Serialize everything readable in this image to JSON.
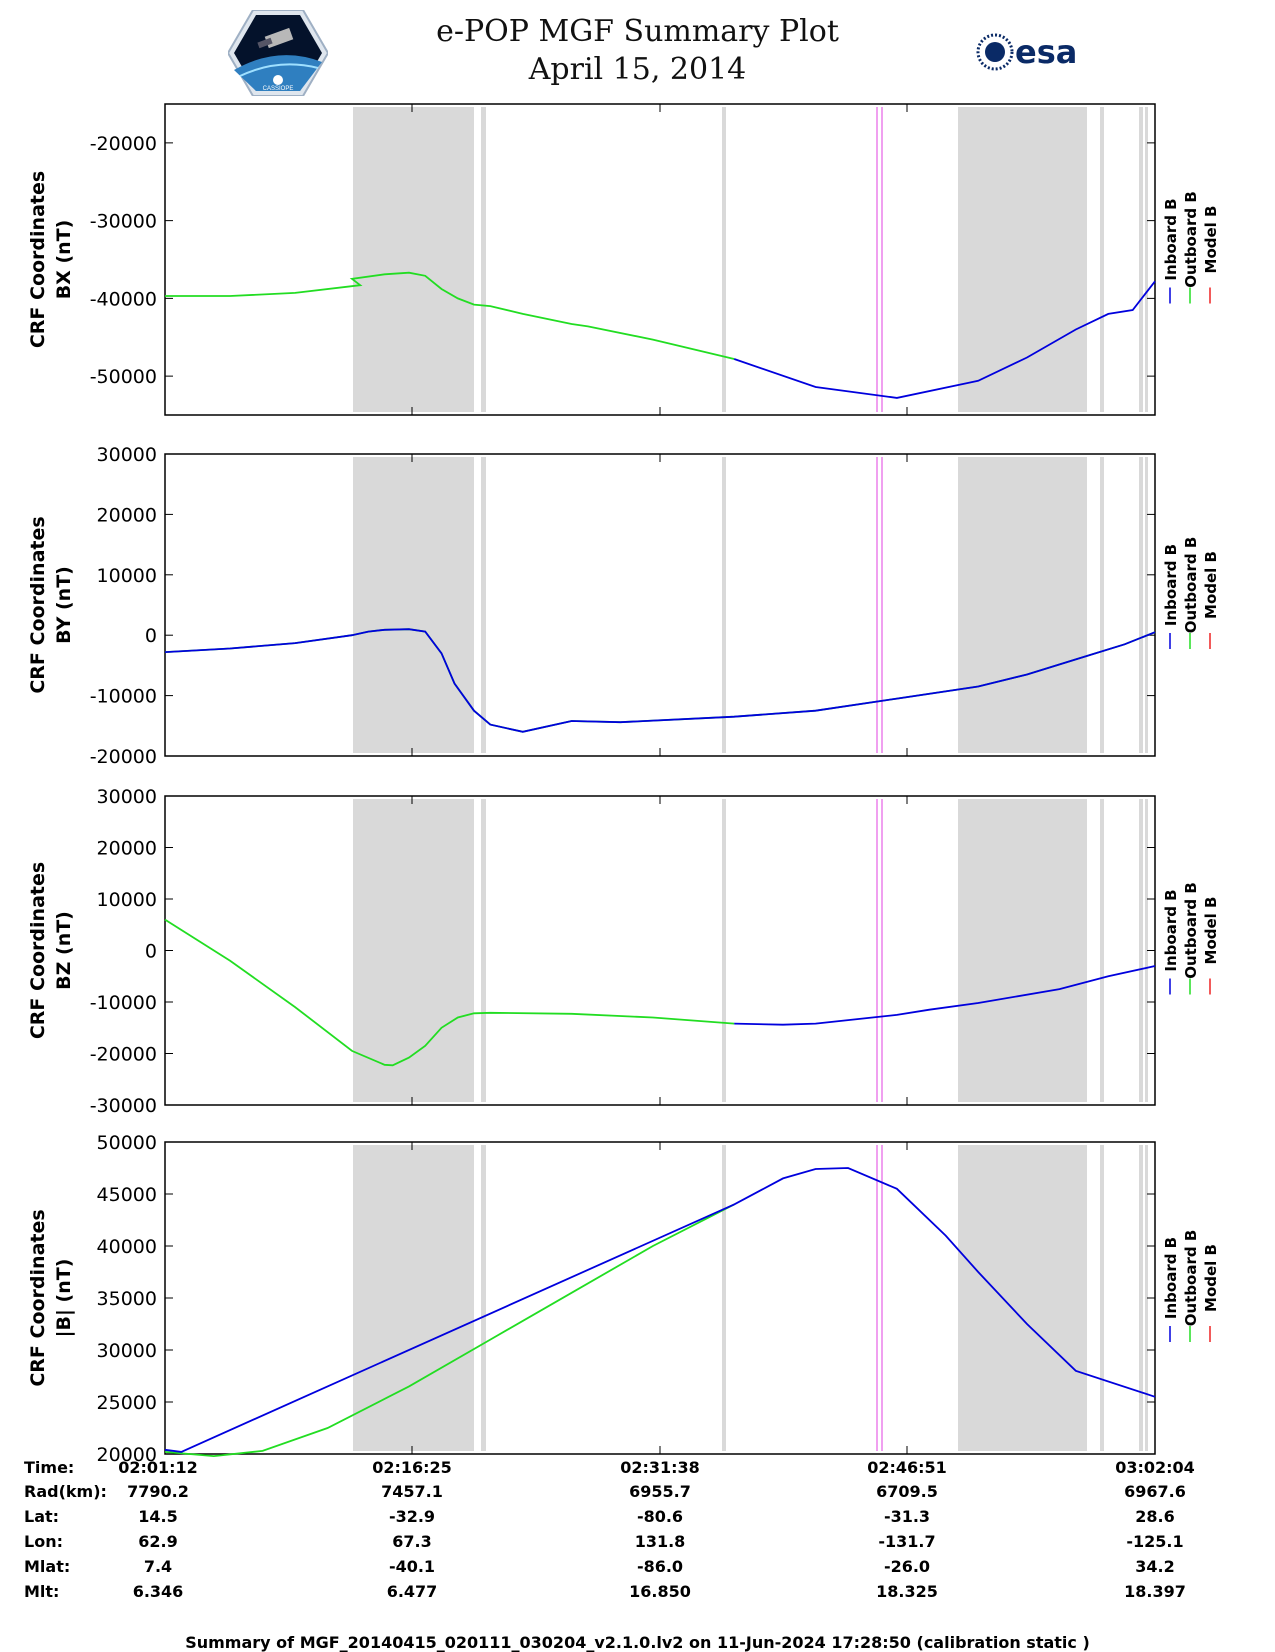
{
  "header": {
    "title_line1": "e-POP MGF Summary Plot",
    "title_line2": "April 15, 2014",
    "left_logo_caption": "CASSIOPE",
    "right_logo_text": "esa"
  },
  "colors": {
    "inboard": "#0000dd",
    "outboard": "#22dd22",
    "model": "#ee2222",
    "shade": "#d9d9d9",
    "magenta": "#f0a0f0"
  },
  "legend_labels": [
    "Inboard B",
    "Outboard B",
    "Model B"
  ],
  "footer": "Summary of MGF_20140415_020111_030204_v2.1.0.lv2 on 11-Jun-2024 17:28:50 (calibration static )",
  "ephemeris": {
    "row_labels": [
      "Time:",
      "Rad(km):",
      "Lat:",
      "Lon:",
      "Mlat:",
      "Mlt:"
    ],
    "columns": [
      [
        "02:01:12",
        "7790.2",
        "14.5",
        "62.9",
        "7.4",
        "6.346"
      ],
      [
        "02:16:25",
        "7457.1",
        "-32.9",
        "67.3",
        "-40.1",
        "6.477"
      ],
      [
        "02:31:38",
        "6955.7",
        "-80.6",
        "131.8",
        "-86.0",
        "16.850"
      ],
      [
        "02:46:51",
        "6709.5",
        "-31.3",
        "-131.7",
        "-26.0",
        "18.325"
      ],
      [
        "03:02:04",
        "6967.6",
        "28.6",
        "-125.1",
        "34.2",
        "18.397"
      ]
    ]
  },
  "chart_data": [
    {
      "type": "line",
      "ylabel_line1": "CRF Coordinates",
      "ylabel_line2": "BX (nT)",
      "ylim": [
        -55000,
        -15000
      ],
      "yticks": [
        -50000,
        -40000,
        -30000,
        -20000
      ],
      "ytick_labels": [
        "-50000",
        "-40000",
        "-30000",
        "-20000"
      ],
      "x_unit": "minutes since 02:01:12",
      "xlim": [
        0,
        60.87
      ],
      "series": [
        {
          "name": "Outboard B",
          "x": [
            0,
            4,
            8,
            12,
            11.5,
            13.5,
            15,
            16,
            17,
            18,
            19,
            20,
            22,
            25,
            26,
            30,
            35
          ],
          "y": [
            -39700,
            -39700,
            -39300,
            -38300,
            -37500,
            -36900,
            -36700,
            -37100,
            -38800,
            -40000,
            -40800,
            -41000,
            -42000,
            -43300,
            -43600,
            -45300,
            -47800
          ]
        },
        {
          "name": "Inboard B",
          "x": [
            35,
            40,
            45,
            50,
            53,
            56,
            58,
            59.5,
            60.87
          ],
          "y": [
            -47800,
            -51400,
            -52800,
            -50600,
            -47600,
            -44000,
            -42000,
            -41500,
            -37800
          ]
        }
      ]
    },
    {
      "type": "line",
      "ylabel_line1": "CRF Coordinates",
      "ylabel_line2": "BY (nT)",
      "ylim": [
        -20000,
        30000
      ],
      "yticks": [
        -20000,
        -10000,
        0,
        10000,
        20000,
        30000
      ],
      "ytick_labels": [
        "-20000",
        "-10000",
        "0",
        "10000",
        "20000",
        "30000"
      ],
      "x_unit": "minutes since 02:01:12",
      "xlim": [
        0,
        60.87
      ],
      "series": [
        {
          "name": "Outboard B",
          "x": [
            0,
            4,
            8,
            11.5,
            12.5,
            13.5,
            15,
            16,
            17,
            17.8,
            19,
            20,
            22,
            25,
            28,
            35,
            40,
            45,
            50,
            53,
            56,
            59,
            60.87
          ],
          "y": [
            -2800,
            -2200,
            -1300,
            0,
            600,
            900,
            1000,
            600,
            -3000,
            -8000,
            -12500,
            -14800,
            -16000,
            -14200,
            -14400,
            -13500,
            -12500,
            -10500,
            -8500,
            -6500,
            -4000,
            -1500,
            500
          ]
        },
        {
          "name": "Inboard B",
          "x": [
            0,
            4,
            8,
            11.5,
            12.5,
            13.5,
            15,
            16,
            17,
            17.8,
            19,
            20,
            22,
            25,
            28,
            35,
            40,
            45,
            50,
            53,
            56,
            59,
            60.87
          ],
          "y": [
            -2800,
            -2200,
            -1300,
            0,
            600,
            900,
            1000,
            600,
            -3000,
            -8000,
            -12500,
            -14800,
            -16000,
            -14200,
            -14400,
            -13500,
            -12500,
            -10500,
            -8500,
            -6500,
            -4000,
            -1500,
            500
          ]
        }
      ]
    },
    {
      "type": "line",
      "ylabel_line1": "CRF Coordinates",
      "ylabel_line2": "BZ (nT)",
      "ylim": [
        -30000,
        30000
      ],
      "yticks": [
        -30000,
        -20000,
        -10000,
        0,
        10000,
        20000,
        30000
      ],
      "ytick_labels": [
        "-30000",
        "-20000",
        "-10000",
        "0",
        "10000",
        "20000",
        "30000"
      ],
      "x_unit": "minutes since 02:01:12",
      "xlim": [
        0,
        60.87
      ],
      "series": [
        {
          "name": "Outboard B",
          "x": [
            0,
            4,
            8,
            11.5,
            13.5,
            14,
            15,
            16,
            17,
            18,
            19,
            20,
            25,
            30,
            35
          ],
          "y": [
            6000,
            -2000,
            -11000,
            -19500,
            -22200,
            -22300,
            -20800,
            -18500,
            -15000,
            -13000,
            -12200,
            -12100,
            -12300,
            -13000,
            -14200
          ]
        },
        {
          "name": "Inboard B",
          "x": [
            35,
            38,
            40,
            45,
            47,
            50,
            55,
            58,
            60.87
          ],
          "y": [
            -14200,
            -14400,
            -14200,
            -12500,
            -11500,
            -10200,
            -7500,
            -5000,
            -3000
          ]
        }
      ]
    },
    {
      "type": "line",
      "ylabel_line1": "CRF Coordinates",
      "ylabel_line2": "|B| (nT)",
      "ylim": [
        20000,
        50000
      ],
      "yticks": [
        20000,
        25000,
        30000,
        35000,
        40000,
        45000,
        50000
      ],
      "ytick_labels": [
        "20000",
        "25000",
        "30000",
        "35000",
        "40000",
        "45000",
        "50000"
      ],
      "x_unit": "minutes since 02:01:12",
      "xlim": [
        0,
        60.87
      ],
      "series": [
        {
          "name": "Outboard B",
          "x": [
            0,
            3,
            6,
            10,
            15,
            20,
            25,
            30,
            35
          ],
          "y": [
            20200,
            19800,
            20300,
            22500,
            26500,
            31000,
            35500,
            40000,
            44000
          ]
        },
        {
          "name": "Inboard B",
          "x": [
            0,
            1,
            35,
            38,
            40,
            42,
            45,
            48,
            50,
            53,
            56,
            60.87
          ],
          "y": [
            20400,
            20200,
            44000,
            46500,
            47400,
            47500,
            45500,
            41000,
            37500,
            32500,
            28000,
            25500
          ]
        }
      ]
    }
  ]
}
